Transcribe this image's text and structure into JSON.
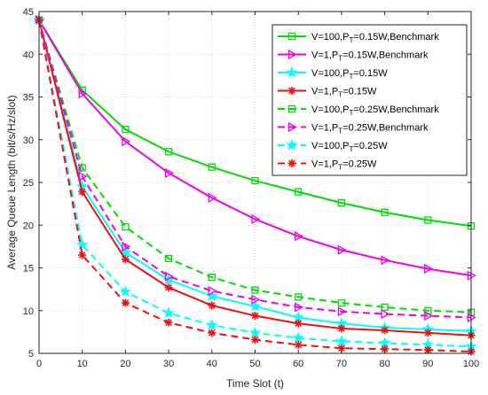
{
  "chart_data": {
    "type": "line",
    "title": "",
    "xlabel": "Time Slot (t)",
    "ylabel": "Average Queue Length (bit/s/Hz/slot)",
    "xlim": [
      0,
      100
    ],
    "ylim": [
      5,
      45
    ],
    "xticks": [
      0,
      10,
      20,
      30,
      40,
      50,
      60,
      70,
      80,
      90,
      100
    ],
    "yticks": [
      5,
      10,
      15,
      20,
      25,
      30,
      35,
      40,
      45
    ],
    "grid": true,
    "legend_position": "top-right",
    "x": [
      0,
      10,
      20,
      30,
      40,
      50,
      60,
      70,
      80,
      90,
      100
    ],
    "series": [
      {
        "name": "V=100,P_T=0.15W,Benchmark",
        "legend_main": "V=100,P",
        "legend_sub": "T",
        "legend_tail": "=0.15W,Benchmark",
        "color": "#00dd00",
        "dash": "solid",
        "marker": "square",
        "values": [
          44,
          35.8,
          31.2,
          28.6,
          26.8,
          25.2,
          23.9,
          22.6,
          21.5,
          20.6,
          19.9
        ]
      },
      {
        "name": "V=1,P_T=0.15W,Benchmark",
        "legend_main": "V=1,P",
        "legend_sub": "T",
        "legend_tail": "=0.15W,Benchmark",
        "color": "#ee00ee",
        "dash": "solid",
        "marker": "triangle-right",
        "values": [
          44,
          35.4,
          29.8,
          26.1,
          23.2,
          20.7,
          18.7,
          17.1,
          15.9,
          14.9,
          14.1
        ]
      },
      {
        "name": "V=100,P_T=0.15W",
        "legend_main": "V=100,P",
        "legend_sub": "T",
        "legend_tail": "=0.15W",
        "color": "#00ffff",
        "dash": "solid",
        "marker": "star",
        "values": [
          44,
          24.5,
          16.8,
          13.6,
          11.7,
          10.5,
          9.2,
          8.5,
          8.0,
          7.8,
          7.6
        ]
      },
      {
        "name": "V=1,P_T=0.15W",
        "legend_main": "V=1,P",
        "legend_sub": "T",
        "legend_tail": "=0.15W",
        "color": "#ee1111",
        "dash": "solid",
        "marker": "asterisk",
        "values": [
          44,
          23.9,
          16.0,
          12.7,
          10.6,
          9.4,
          8.5,
          7.9,
          7.7,
          7.4,
          7.1
        ]
      },
      {
        "name": "V=100,P_T=0.25W,Benchmark",
        "legend_main": "V=100,P",
        "legend_sub": "T",
        "legend_tail": "=0.25W,Benchmark",
        "color": "#00dd00",
        "dash": "dashed",
        "marker": "square",
        "values": [
          44,
          26.7,
          19.8,
          16.1,
          13.9,
          12.4,
          11.6,
          10.9,
          10.4,
          10.0,
          9.8
        ]
      },
      {
        "name": "V=1,P_T=0.25W,Benchmark",
        "legend_main": "V=1,P",
        "legend_sub": "T",
        "legend_tail": "=0.25W,Benchmark",
        "color": "#ee00ee",
        "dash": "dashed",
        "marker": "triangle-right",
        "values": [
          44,
          25.7,
          17.5,
          14.0,
          12.3,
          11.3,
          10.4,
          9.9,
          9.6,
          9.4,
          9.2
        ]
      },
      {
        "name": "V=100,P_T=0.25W",
        "legend_main": "V=100,P",
        "legend_sub": "T",
        "legend_tail": "=0.25W",
        "color": "#00ffff",
        "dash": "dashed",
        "marker": "star",
        "values": [
          44,
          17.7,
          12.2,
          9.7,
          8.3,
          7.4,
          6.8,
          6.4,
          6.2,
          6.0,
          5.8
        ]
      },
      {
        "name": "V=1,P_T=0.25W",
        "legend_main": "V=1,P",
        "legend_sub": "T",
        "legend_tail": "=0.25W",
        "color": "#ee1111",
        "dash": "dashed",
        "marker": "asterisk",
        "values": [
          44,
          16.5,
          10.9,
          8.6,
          7.4,
          6.6,
          6.0,
          5.6,
          5.5,
          5.4,
          5.2
        ]
      }
    ]
  }
}
